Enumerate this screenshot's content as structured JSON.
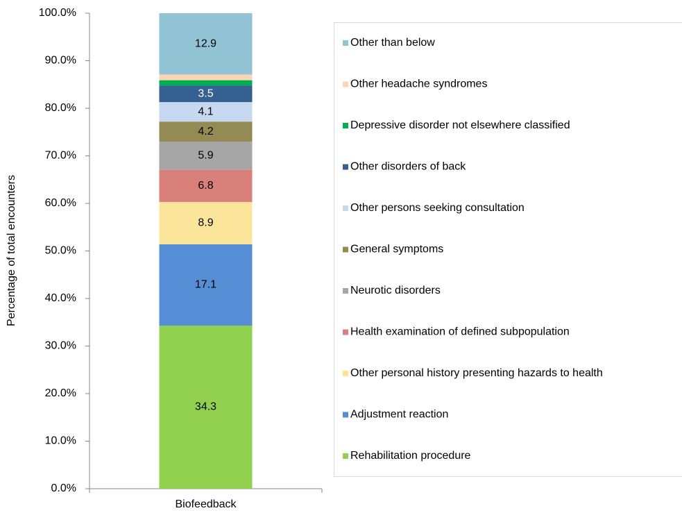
{
  "chart_data": {
    "type": "stacked_bar",
    "y_label": "Percentage of total encounters",
    "categories": [
      "Biofeedback"
    ],
    "ylim": [
      0,
      100
    ],
    "yticks": [
      {
        "value": 0,
        "label": "0.0%"
      },
      {
        "value": 10,
        "label": "10.0%"
      },
      {
        "value": 20,
        "label": "20.0%"
      },
      {
        "value": 30,
        "label": "30.0%"
      },
      {
        "value": 40,
        "label": "40.0%"
      },
      {
        "value": 50,
        "label": "50.0%"
      },
      {
        "value": 60,
        "label": "60.0%"
      },
      {
        "value": 70,
        "label": "70.0%"
      },
      {
        "value": 80,
        "label": "80.0%"
      },
      {
        "value": 90,
        "label": "90.0%"
      },
      {
        "value": 100,
        "label": "100.0%"
      }
    ],
    "legend": "right",
    "series": [
      {
        "name": "Rehabilitation procedure",
        "color": "#92d050",
        "values": [
          34.3
        ]
      },
      {
        "name": "Adjustment reaction",
        "color": "#558ed5",
        "values": [
          17.1
        ]
      },
      {
        "name": "Other personal history presenting hazards to health",
        "color": "#fae59a",
        "values": [
          8.9
        ]
      },
      {
        "name": "Health examination of defined subpopulation",
        "color": "#d9807b",
        "values": [
          6.8
        ]
      },
      {
        "name": "Neurotic disorders",
        "color": "#a6a6a6",
        "values": [
          5.9
        ]
      },
      {
        "name": "General symptoms",
        "color": "#948a54",
        "values": [
          4.2
        ]
      },
      {
        "name": "Other persons seeking consultation",
        "color": "#c6d9f1",
        "values": [
          4.1
        ]
      },
      {
        "name": "Other disorders of back",
        "color": "#366092",
        "values": [
          3.5
        ]
      },
      {
        "name": "Depressive disorder not elsewhere classified",
        "color": "#00b050",
        "values": [
          1.1
        ]
      },
      {
        "name": "Other headache syndromes",
        "color": "#fcd5b5",
        "values": [
          1.2
        ]
      },
      {
        "name": "Other than below",
        "color": "#93c4d5",
        "values": [
          12.9
        ]
      }
    ]
  }
}
